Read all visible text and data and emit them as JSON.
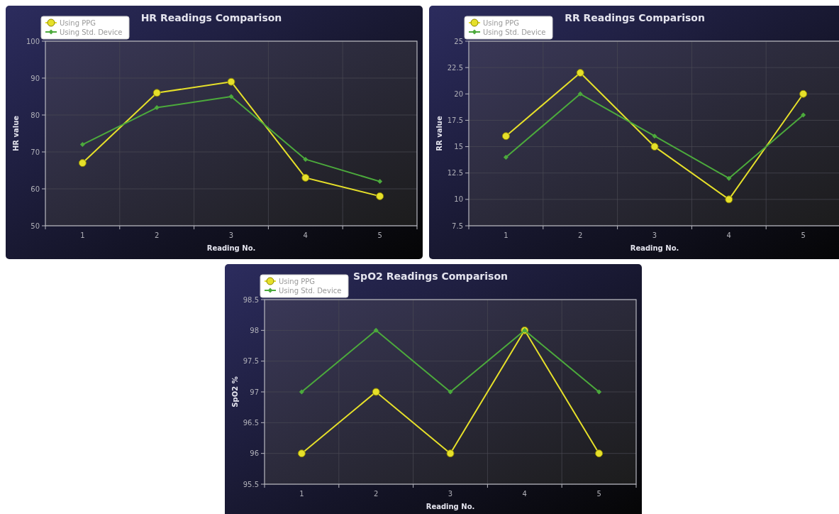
{
  "chart_data": [
    {
      "type": "line",
      "title": "HR Readings Comparison",
      "xlabel": "Reading No.",
      "ylabel": "HR value",
      "categories": [
        "1",
        "2",
        "3",
        "4",
        "5"
      ],
      "ylim": [
        50,
        100
      ],
      "yticks": [
        50,
        60,
        70,
        80,
        90,
        100
      ],
      "grid": true,
      "legend": "top left",
      "series": [
        {
          "name": "Using PPG",
          "color": "#e6e02a",
          "marker": "circle",
          "values": [
            67,
            86,
            89,
            63,
            58
          ]
        },
        {
          "name": "Using Std. Device",
          "color": "#4caa3c",
          "marker": "diamond",
          "values": [
            72,
            82,
            85,
            68,
            62
          ]
        }
      ]
    },
    {
      "type": "line",
      "title": "RR Readings Comparison",
      "xlabel": "Reading No.",
      "ylabel": "RR value",
      "categories": [
        "1",
        "2",
        "3",
        "4",
        "5"
      ],
      "ylim": [
        7.5,
        25
      ],
      "yticks": [
        7.5,
        10,
        12.5,
        15,
        17.5,
        20,
        22.5,
        25
      ],
      "grid": true,
      "legend": "top left",
      "series": [
        {
          "name": "Using PPG",
          "color": "#e6e02a",
          "marker": "circle",
          "values": [
            16,
            22,
            15,
            10,
            20
          ]
        },
        {
          "name": "Using Std. Device",
          "color": "#4caa3c",
          "marker": "diamond",
          "values": [
            14,
            20,
            16,
            12,
            18
          ]
        }
      ]
    },
    {
      "type": "line",
      "title": "SpO2 Readings Comparison",
      "xlabel": "Reading No.",
      "ylabel": "SpO2 %",
      "categories": [
        "1",
        "2",
        "3",
        "4",
        "5"
      ],
      "ylim": [
        95.5,
        98.5
      ],
      "yticks": [
        95.5,
        96,
        96.5,
        97,
        97.5,
        98,
        98.5
      ],
      "grid": true,
      "legend": "top left",
      "series": [
        {
          "name": "Using PPG",
          "color": "#e6e02a",
          "marker": "circle",
          "values": [
            96,
            97,
            96,
            98,
            96
          ]
        },
        {
          "name": "Using Std. Device",
          "color": "#4caa3c",
          "marker": "diamond",
          "values": [
            97,
            98,
            97,
            98,
            97
          ]
        }
      ]
    }
  ]
}
